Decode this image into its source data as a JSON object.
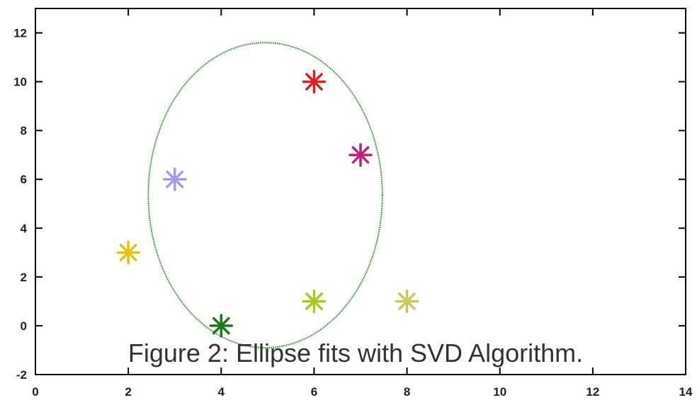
{
  "chart_data": {
    "type": "scatter",
    "title": "",
    "xlabel": "",
    "ylabel": "",
    "xlim": [
      0,
      14
    ],
    "ylim": [
      -2,
      13
    ],
    "xticks": [
      0,
      2,
      4,
      6,
      8,
      10,
      12,
      14
    ],
    "yticks": [
      -2,
      0,
      2,
      4,
      6,
      8,
      10,
      12
    ],
    "grid": false,
    "marker": "asterisk",
    "points": [
      {
        "x": 6,
        "y": 10,
        "color": "#e02020"
      },
      {
        "x": 7,
        "y": 7,
        "color": "#c0207a"
      },
      {
        "x": 3,
        "y": 6,
        "color": "#9f9be8"
      },
      {
        "x": 2,
        "y": 3,
        "color": "#e8c010"
      },
      {
        "x": 4,
        "y": 0,
        "color": "#1a7a1a"
      },
      {
        "x": 6,
        "y": 1,
        "color": "#a8c820"
      },
      {
        "x": 8,
        "y": 1,
        "color": "#c8c860"
      }
    ],
    "ellipse": {
      "cx": 4.95,
      "cy": 5.35,
      "rx": 2.52,
      "ry": 6.25,
      "color": "#4a9a4a"
    },
    "annotation": "Figure 2: Ellipse fits with SVD Algorithm."
  }
}
